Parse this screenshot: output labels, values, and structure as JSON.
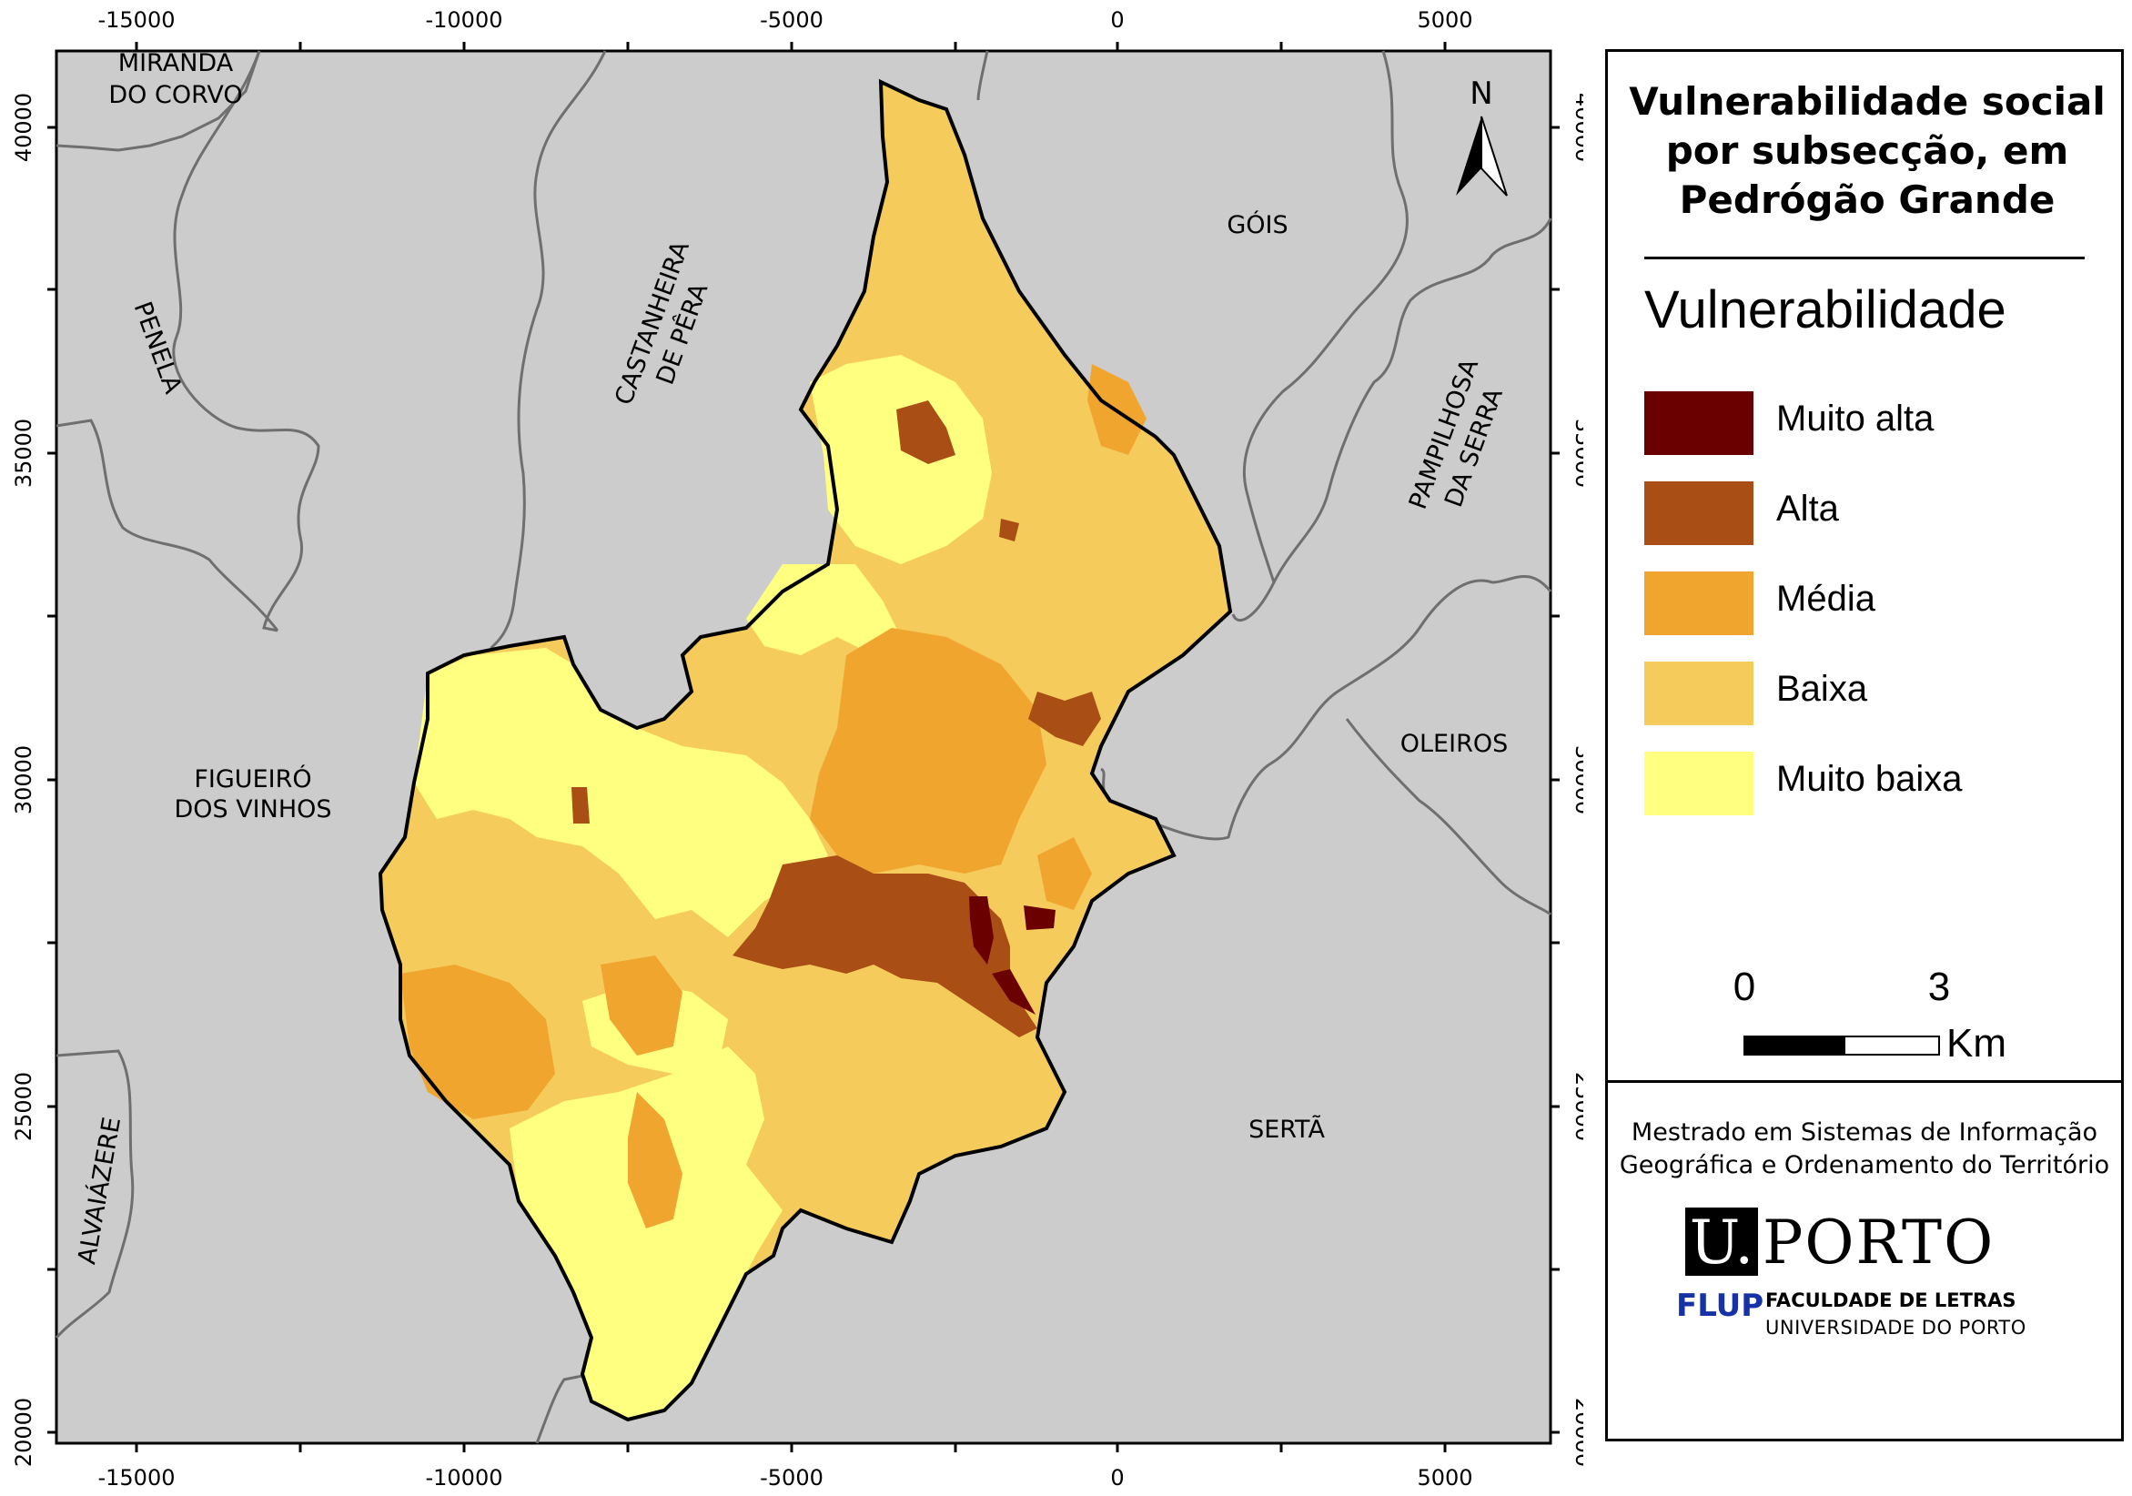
{
  "map": {
    "x_ticks": [
      "-15000",
      "-10000",
      "-5000",
      "0",
      "5000"
    ],
    "y_ticks": [
      "40000",
      "35000",
      "30000",
      "25000",
      "20000"
    ],
    "place_labels": {
      "miranda": [
        "MIRANDA",
        "DO CORVO"
      ],
      "gois": "GÓIS",
      "penela": "PENELA",
      "castanheira": [
        "CASTANHEIRA",
        "DE PÊRA"
      ],
      "pampilhosa": [
        "PAMPILHOSA",
        "DA SERRA"
      ],
      "figueiro": [
        "FIGUEIRÓ",
        "DOS VINHOS"
      ],
      "oleiros": "OLEIROS",
      "serta": "SERTÃ",
      "alvaiazere": "ALVAIÁZERE"
    },
    "north_arrow": {
      "label": "N",
      "icon": "north-arrow-icon"
    },
    "colors": {
      "background": "#cccccc",
      "muito_alta": "#6b0000",
      "alta": "#a94e15",
      "media": "#f0a52f",
      "baixa": "#f5cb5c",
      "muito_baixa": "#ffff80"
    }
  },
  "legend": {
    "title": "Vulnerabilidade social por subsecção, em Pedrógão Grande",
    "heading": "Vulnerabilidade",
    "items": [
      {
        "label": "Muito alta",
        "color": "#6b0000"
      },
      {
        "label": "Alta",
        "color": "#a94e15"
      },
      {
        "label": "Média",
        "color": "#f0a52f"
      },
      {
        "label": "Baixa",
        "color": "#f5cb5c"
      },
      {
        "label": "Muito baixa",
        "color": "#ffff80"
      }
    ],
    "scale_bar": {
      "start": "0",
      "end": "3",
      "unit": "Km"
    }
  },
  "credits": {
    "course": "Mestrado em Sistemas de Informação Geográfica e Ordenamento do Território",
    "logo_u": "U.",
    "logo_porto": "PORTO",
    "logo_flup": "FLUP",
    "logo_faculty": "FACULDADE DE LETRAS",
    "logo_university": "UNIVERSIDADE DO PORTO"
  }
}
